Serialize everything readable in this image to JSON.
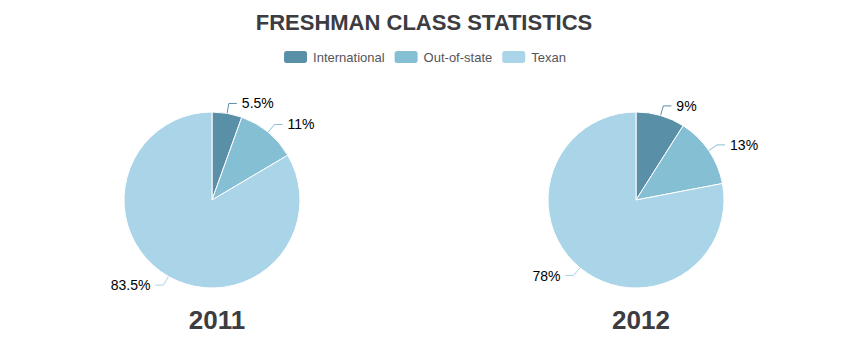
{
  "chart_data": [
    {
      "type": "pie",
      "title": "FRESHMAN CLASS STATISTICS",
      "subtitle": "2011",
      "categories": [
        "International",
        "Out-of-state",
        "Texan"
      ],
      "values": [
        5.5,
        11.0,
        83.5
      ],
      "value_labels": [
        "5.5%",
        "11%",
        "83.5%"
      ],
      "colors": [
        "#5a8fa8",
        "#85bfd4",
        "#aad4e8"
      ],
      "data_labels": true,
      "legend": "top"
    },
    {
      "type": "pie",
      "subtitle": "2012",
      "categories": [
        "International",
        "Out-of-state",
        "Texan"
      ],
      "values": [
        9.0,
        13.0,
        78.0
      ],
      "value_labels": [
        "9%",
        "13%",
        "78%"
      ],
      "colors": [
        "#5a8fa8",
        "#85bfd4",
        "#aad4e8"
      ],
      "data_labels": true
    }
  ]
}
